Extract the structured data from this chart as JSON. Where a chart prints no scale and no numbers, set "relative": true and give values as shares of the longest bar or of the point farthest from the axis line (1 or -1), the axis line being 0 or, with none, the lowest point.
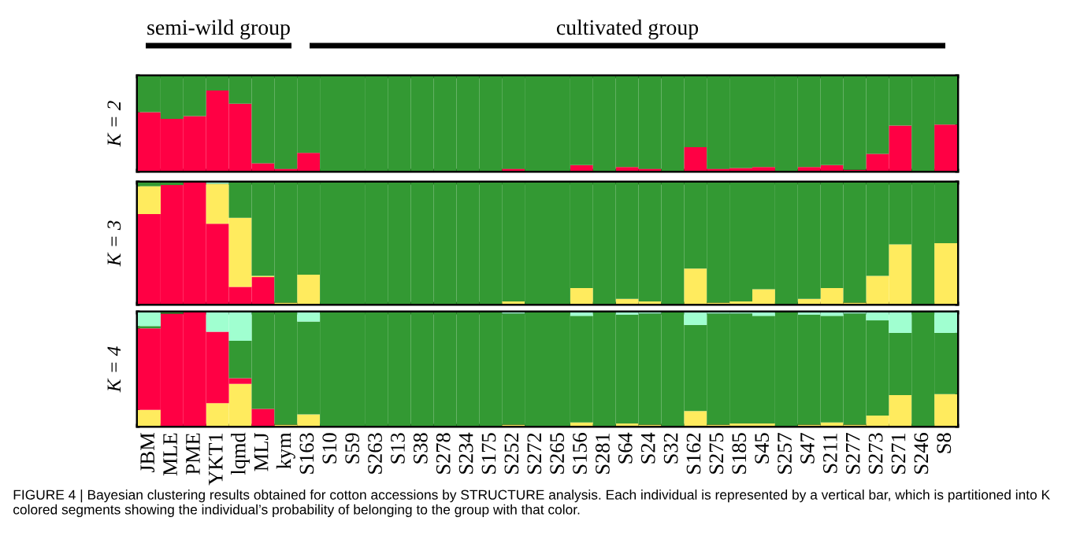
{
  "chart_data": [
    {
      "type": "bar",
      "stacked": true,
      "relative": true,
      "ylabel": "K = 2",
      "tick_labels": false,
      "categories": [
        null,
        null,
        null,
        null,
        null,
        null,
        null,
        null,
        null,
        null,
        null,
        null,
        null,
        null,
        null,
        null,
        null,
        null,
        null,
        null,
        null,
        null,
        null,
        null,
        null,
        null,
        null,
        null,
        null,
        null,
        null,
        null,
        null,
        null,
        null,
        null
      ],
      "annotations": [
        "semi-wild group",
        "cultivated group"
      ],
      "series": [
        {
          "color": "#ff0044",
          "values": [
            0.62,
            0.55,
            0.58,
            0.85,
            0.71,
            0.08,
            0.02,
            0.19,
            0,
            0,
            0,
            0,
            0,
            0,
            0,
            0,
            0.02,
            0,
            0,
            0.06,
            0,
            0.04,
            0.02,
            0,
            0.25,
            0.02,
            0.03,
            0.04,
            0,
            0.04,
            0.06,
            0.01,
            0.18,
            0.48,
            0,
            0.49
          ]
        },
        {
          "color": "#339933",
          "values": [
            0.38,
            0.45,
            0.42,
            0.15,
            0.29,
            0.92,
            0.98,
            0.81,
            1,
            1,
            1,
            1,
            1,
            1,
            1,
            1,
            0.98,
            1,
            1,
            0.94,
            1,
            0.96,
            0.98,
            1,
            0.75,
            0.98,
            0.97,
            0.96,
            1,
            0.96,
            0.94,
            0.99,
            0.82,
            0.52,
            1,
            0.51
          ]
        }
      ]
    },
    {
      "type": "bar",
      "stacked": true,
      "relative": true,
      "ylabel": "K = 3",
      "tick_labels": false,
      "categories": [
        null,
        null,
        null,
        null,
        null,
        null,
        null,
        null,
        null,
        null,
        null,
        null,
        null,
        null,
        null,
        null,
        null,
        null,
        null,
        null,
        null,
        null,
        null,
        null,
        null,
        null,
        null,
        null,
        null,
        null,
        null,
        null,
        null,
        null,
        null,
        null
      ],
      "series": [
        {
          "color": "#ff0044",
          "values": [
            0.74,
            0.98,
            1.0,
            0.66,
            0.14,
            0.22,
            0,
            0,
            0,
            0,
            0,
            0,
            0,
            0,
            0,
            0,
            0,
            0,
            0,
            0,
            0,
            0,
            0,
            0,
            0,
            0,
            0,
            0,
            0,
            0,
            0,
            0,
            0,
            0,
            0,
            0
          ]
        },
        {
          "color": "#ffeb5e",
          "values": [
            0.23,
            0,
            0,
            0.33,
            0.57,
            0.01,
            0.01,
            0.24,
            0,
            0,
            0,
            0,
            0,
            0,
            0,
            0,
            0.02,
            0,
            0,
            0.13,
            0,
            0.04,
            0.02,
            0,
            0.29,
            0.01,
            0.02,
            0.12,
            0,
            0.04,
            0.13,
            0.01,
            0.23,
            0.49,
            0,
            0.5
          ]
        },
        {
          "color": "#339933",
          "values": [
            0.03,
            0.02,
            0,
            0,
            0.29,
            0.77,
            0.99,
            0.76,
            1,
            1,
            1,
            1,
            1,
            1,
            1,
            1,
            0.98,
            1,
            1,
            0.87,
            1,
            0.96,
            0.98,
            1,
            0.71,
            0.99,
            0.98,
            0.88,
            1,
            0.96,
            0.87,
            0.99,
            0.77,
            0.51,
            1,
            0.5
          ]
        },
        {
          "color": "#a0ffd0",
          "values": [
            0,
            0,
            0,
            0.01,
            0,
            0,
            0,
            0,
            0,
            0,
            0,
            0,
            0,
            0,
            0,
            0,
            0,
            0,
            0,
            0,
            0,
            0,
            0,
            0,
            0,
            0,
            0,
            0,
            0,
            0,
            0,
            0,
            0,
            0,
            0,
            0
          ]
        }
      ]
    },
    {
      "type": "bar",
      "stacked": true,
      "relative": true,
      "ylabel": "K = 4",
      "tick_labels": "x",
      "categories": [
        "JBM",
        "MLE",
        "PME",
        "YKT1",
        "lqmd",
        "MLJ",
        "kym",
        "S163",
        "S10",
        "S59",
        "S263",
        "S13",
        "S38",
        "S278",
        "S234",
        "S175",
        "S252",
        "S272",
        "S265",
        "S156",
        "S281",
        "S64",
        "S24",
        "S32",
        "S162",
        "S275",
        "S185",
        "S45",
        "S257",
        "S47",
        "S211",
        "S277",
        "S273",
        "S271",
        "S246",
        "S8"
      ],
      "annotations": [
        "FIGURE 4 | Bayesian clustering results obtained for cotton accessions by STRUCTURE analysis. Each individual is represented by a vertical bar, which is partitioned into K colored segments showing the individual’s probability of belonging to the group with that color."
      ],
      "series": [
        {
          "color": "#ffeb5e",
          "values": [
            0.14,
            0,
            0,
            0.2,
            0.37,
            0,
            0.01,
            0.1,
            0,
            0,
            0,
            0,
            0,
            0,
            0,
            0,
            0.01,
            0,
            0,
            0.03,
            0,
            0.02,
            0.01,
            0,
            0.13,
            0.01,
            0.02,
            0.02,
            0,
            0.01,
            0.03,
            0.01,
            0.09,
            0.27,
            0,
            0.28
          ]
        },
        {
          "color": "#ff0044",
          "values": [
            0.72,
            0.99,
            1.0,
            0.63,
            0.05,
            0.15,
            0,
            0,
            0,
            0,
            0,
            0,
            0,
            0,
            0,
            0,
            0,
            0,
            0,
            0,
            0,
            0,
            0,
            0,
            0,
            0,
            0,
            0,
            0,
            0,
            0,
            0,
            0,
            0,
            0,
            0
          ]
        },
        {
          "color": "#339933",
          "values": [
            0.02,
            0.01,
            0,
            0,
            0.33,
            0.85,
            0.99,
            0.82,
            1,
            1,
            1,
            1,
            1,
            1,
            1,
            1,
            0.98,
            1,
            1,
            0.94,
            1,
            0.96,
            0.98,
            1,
            0.76,
            0.98,
            0.97,
            0.95,
            1,
            0.97,
            0.94,
            0.98,
            0.84,
            0.55,
            1,
            0.54
          ]
        },
        {
          "color": "#a0ffd0",
          "values": [
            0.12,
            0,
            0,
            0.17,
            0.25,
            0,
            0,
            0.08,
            0,
            0,
            0,
            0,
            0,
            0,
            0,
            0,
            0.01,
            0,
            0,
            0.03,
            0,
            0.02,
            0.01,
            0,
            0.11,
            0.01,
            0.01,
            0.03,
            0,
            0.02,
            0.03,
            0.01,
            0.07,
            0.18,
            0,
            0.18
          ]
        }
      ]
    }
  ]
}
